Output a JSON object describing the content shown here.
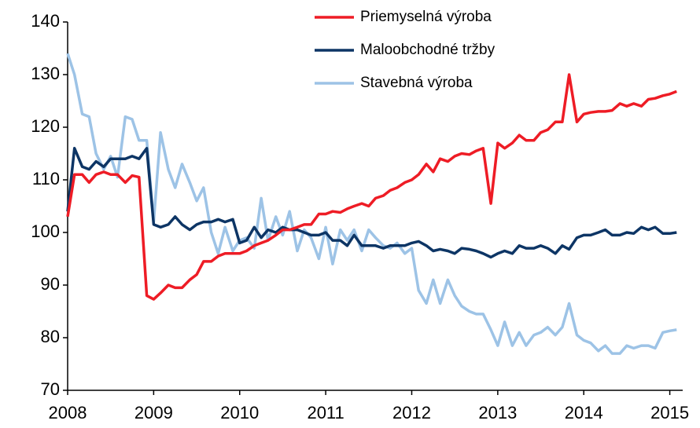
{
  "chart_data": {
    "type": "line",
    "x": [
      2008,
      2008.08,
      2008.17,
      2008.25,
      2008.33,
      2008.42,
      2008.5,
      2008.58,
      2008.67,
      2008.75,
      2008.83,
      2008.92,
      2009,
      2009.08,
      2009.17,
      2009.25,
      2009.33,
      2009.42,
      2009.5,
      2009.58,
      2009.67,
      2009.75,
      2009.83,
      2009.92,
      2010,
      2010.08,
      2010.17,
      2010.25,
      2010.33,
      2010.42,
      2010.5,
      2010.58,
      2010.67,
      2010.75,
      2010.83,
      2010.92,
      2011,
      2011.08,
      2011.17,
      2011.25,
      2011.33,
      2011.42,
      2011.5,
      2011.58,
      2011.67,
      2011.75,
      2011.83,
      2011.92,
      2012,
      2012.08,
      2012.17,
      2012.25,
      2012.33,
      2012.42,
      2012.5,
      2012.58,
      2012.67,
      2012.75,
      2012.83,
      2012.92,
      2013,
      2013.08,
      2013.17,
      2013.25,
      2013.33,
      2013.42,
      2013.5,
      2013.58,
      2013.67,
      2013.75,
      2013.83,
      2013.92,
      2014,
      2014.08,
      2014.17,
      2014.25,
      2014.33,
      2014.42,
      2014.5,
      2014.58,
      2014.67,
      2014.75,
      2014.83,
      2014.92,
      2015,
      2015.08
    ],
    "series": [
      {
        "name": "Priemyselná výroba",
        "color": "#ee1c25",
        "values": [
          103,
          111,
          111,
          109.5,
          111,
          111.5,
          111,
          111,
          109.5,
          110.8,
          110.5,
          88,
          87.3,
          88.5,
          90,
          89.5,
          89.5,
          91,
          92,
          94.5,
          94.5,
          95.5,
          96,
          96,
          96,
          96.5,
          97.5,
          98,
          98.5,
          99.5,
          100.5,
          100.5,
          101,
          101.5,
          101.5,
          103.5,
          103.5,
          104,
          103.8,
          104.5,
          105,
          105.5,
          105,
          106.5,
          107,
          108,
          108.5,
          109.5,
          110,
          111,
          113,
          111.5,
          114,
          113.5,
          114.5,
          115,
          114.8,
          115.5,
          116,
          105.5,
          117,
          116,
          117,
          118.5,
          117.5,
          117.5,
          119,
          119.5,
          121,
          121,
          130,
          121,
          122.5,
          122.8,
          123,
          123,
          123.2,
          124.5,
          124,
          124.5,
          124,
          125.3,
          125.5,
          126,
          126.3,
          126.8
        ]
      },
      {
        "name": "Maloobchodné tržby",
        "color": "#0d3565",
        "values": [
          104,
          116,
          112.5,
          112,
          113.5,
          112.5,
          114,
          114,
          114,
          114.5,
          114,
          116,
          101.5,
          101,
          101.5,
          103,
          101.5,
          100.5,
          101.5,
          102,
          102,
          102.5,
          102,
          102.5,
          98,
          98.5,
          101,
          99,
          100.5,
          100,
          101,
          100.5,
          100.5,
          100,
          99.5,
          99.5,
          100,
          98.5,
          98.5,
          97.5,
          99.5,
          97.5,
          97.5,
          97.5,
          97,
          97.5,
          97.5,
          97.5,
          98,
          98.3,
          97.5,
          96.5,
          96.8,
          96.5,
          96,
          97,
          96.8,
          96.5,
          96,
          95.3,
          96,
          96.5,
          96,
          97.5,
          97,
          97,
          97.5,
          97,
          96,
          97.5,
          96.8,
          99,
          99.5,
          99.5,
          100,
          100.5,
          99.5,
          99.5,
          100,
          99.8,
          101,
          100.5,
          101,
          99.8,
          99.8,
          100
        ]
      },
      {
        "name": "Stavebná výroba",
        "color": "#9dc3e6",
        "values": [
          134,
          130,
          122.5,
          122,
          115,
          112,
          114.5,
          110.5,
          122,
          121.5,
          117.5,
          117.5,
          102,
          119,
          112,
          108.5,
          113,
          109.5,
          106,
          108.5,
          100,
          96,
          101,
          96.5,
          98.5,
          99,
          97,
          106.5,
          98.5,
          103,
          99.5,
          104,
          96.5,
          100.5,
          99,
          95,
          101,
          94,
          100.5,
          98.5,
          100.5,
          96.5,
          100.5,
          99,
          97.5,
          97,
          98,
          96,
          97,
          89,
          86.5,
          91,
          86.5,
          91,
          88,
          86,
          85,
          84.5,
          84.5,
          81.5,
          78.5,
          83,
          78.5,
          81,
          78.5,
          80.5,
          81,
          82,
          80.5,
          82,
          86.5,
          80.5,
          79.5,
          79,
          77.5,
          78.5,
          77,
          77,
          78.5,
          78,
          78.5,
          78.5,
          78,
          81,
          81.3,
          81.5
        ]
      }
    ],
    "xlim": [
      2008,
      2015.15
    ],
    "xticks": [
      2008,
      2009,
      2010,
      2011,
      2012,
      2013,
      2014,
      2015
    ],
    "ylim": [
      70,
      140
    ],
    "yticks": [
      70,
      80,
      90,
      100,
      110,
      120,
      130,
      140
    ],
    "legend": "top-right"
  }
}
